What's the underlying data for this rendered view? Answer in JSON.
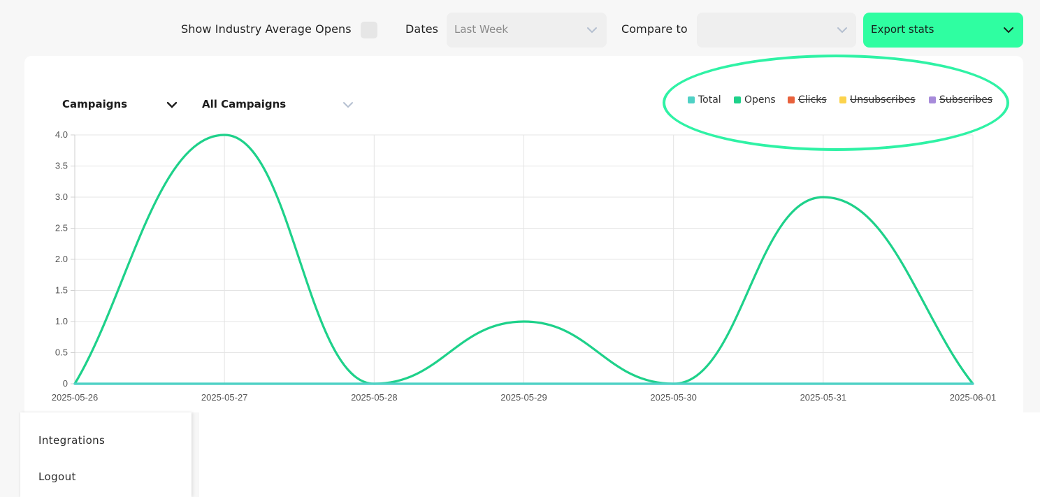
{
  "filters": {
    "industry_avg_label": "Show Industry Average Opens",
    "dates_label": "Dates",
    "dates_value": "Last Week",
    "compare_label": "Compare to",
    "compare_value": "",
    "export_label": "Export stats"
  },
  "chart_controls": {
    "group_by": "Campaigns",
    "campaign_filter": "All Campaigns"
  },
  "legend": [
    {
      "label": "Total",
      "color": "#4fd1c5",
      "active": true
    },
    {
      "label": "Opens",
      "color": "#1ed18a",
      "active": true
    },
    {
      "label": "Clicks",
      "color": "#e8613c",
      "active": false
    },
    {
      "label": "Unsubscribes",
      "color": "#fcd34d",
      "active": false
    },
    {
      "label": "Subscribes",
      "color": "#a78bda",
      "active": false
    }
  ],
  "chart_data": {
    "type": "line",
    "x": [
      "2025-05-26",
      "2025-05-27",
      "2025-05-28",
      "2025-05-29",
      "2025-05-30",
      "2025-05-31",
      "2025-06-01"
    ],
    "ylim": [
      0,
      4
    ],
    "yticks": [
      "0",
      "0.5",
      "1.0",
      "1.5",
      "2.0",
      "2.5",
      "3.0",
      "3.5",
      "4.0"
    ],
    "grid": true,
    "legend_position": "top-right",
    "series": [
      {
        "name": "Total",
        "color": "#4fd1c5",
        "values": [
          0,
          0,
          0,
          0,
          0,
          0,
          0
        ]
      },
      {
        "name": "Opens",
        "color": "#1ed18a",
        "values": [
          0,
          4,
          0,
          1,
          0,
          3,
          0
        ]
      }
    ]
  },
  "sidebar_menu": {
    "items": [
      "Integrations",
      "Logout"
    ]
  }
}
